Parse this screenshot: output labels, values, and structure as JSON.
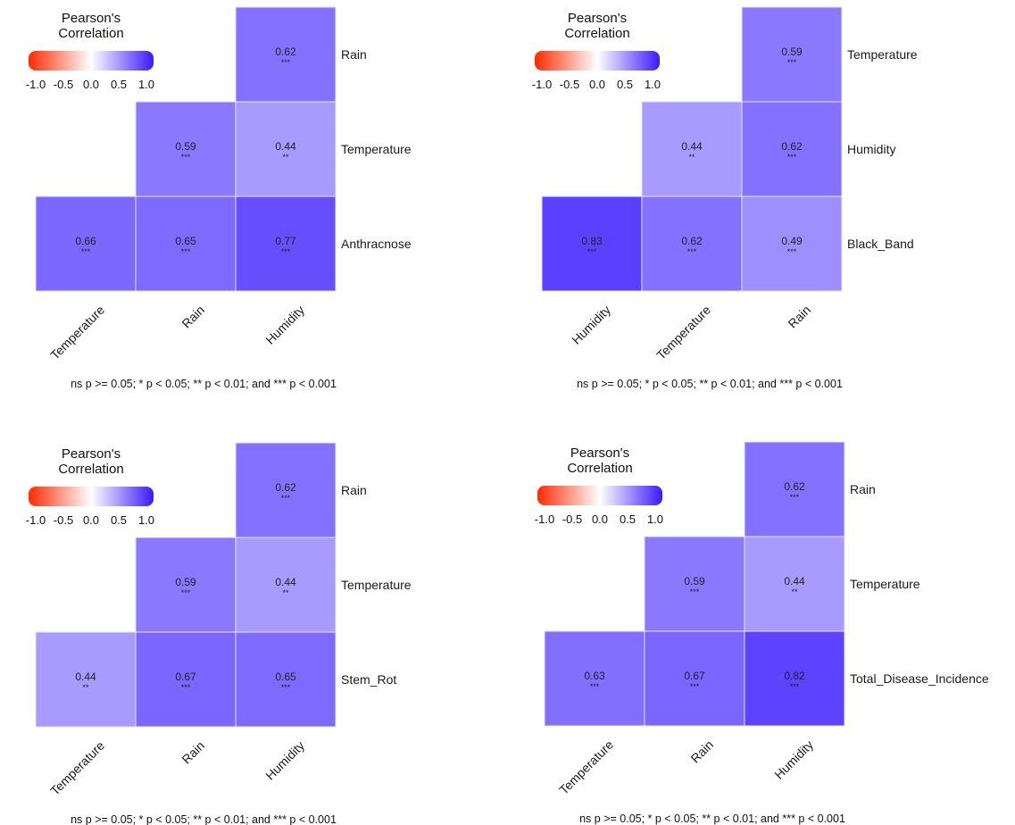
{
  "legend": {
    "title_line1": "Pearson's",
    "title_line2": "Correlation",
    "ticks": [
      "-1.0",
      "-0.5",
      "0.0",
      "0.5",
      "1.0"
    ],
    "tick_values": [
      -1.0,
      -0.5,
      0.0,
      0.5,
      1.0
    ],
    "colors": {
      "low": "#ff2a00",
      "mid": "#ffffff",
      "high": "#3a1aff"
    }
  },
  "footnote": "ns p >= 0.05; * p < 0.05; ** p < 0.01; and *** p < 0.001",
  "chart_data": [
    {
      "type": "heatmap",
      "x_labels": [
        "Temperature",
        "Rain",
        "Humidity"
      ],
      "y_labels": [
        "Rain",
        "Temperature",
        "Anthracnose"
      ],
      "cells": [
        {
          "x": "Humidity",
          "y": "Rain",
          "value": 0.62,
          "label": "0.62",
          "sig": "***"
        },
        {
          "x": "Rain",
          "y": "Temperature",
          "value": 0.59,
          "label": "0.59",
          "sig": "***"
        },
        {
          "x": "Humidity",
          "y": "Temperature",
          "value": 0.44,
          "label": "0.44",
          "sig": "**"
        },
        {
          "x": "Temperature",
          "y": "Anthracnose",
          "value": 0.66,
          "label": "0.66",
          "sig": "***"
        },
        {
          "x": "Rain",
          "y": "Anthracnose",
          "value": 0.65,
          "label": "0.65",
          "sig": "***"
        },
        {
          "x": "Humidity",
          "y": "Anthracnose",
          "value": 0.77,
          "label": "0.77",
          "sig": "***"
        }
      ]
    },
    {
      "type": "heatmap",
      "x_labels": [
        "Humidity",
        "Temperature",
        "Rain"
      ],
      "y_labels": [
        "Temperature",
        "Humidity",
        "Black_Band"
      ],
      "cells": [
        {
          "x": "Rain",
          "y": "Temperature",
          "value": 0.59,
          "label": "0.59",
          "sig": "***"
        },
        {
          "x": "Temperature",
          "y": "Humidity",
          "value": 0.44,
          "label": "0.44",
          "sig": "**"
        },
        {
          "x": "Rain",
          "y": "Humidity",
          "value": 0.62,
          "label": "0.62",
          "sig": "***"
        },
        {
          "x": "Humidity",
          "y": "Black_Band",
          "value": 0.83,
          "label": "0.83",
          "sig": "***"
        },
        {
          "x": "Temperature",
          "y": "Black_Band",
          "value": 0.62,
          "label": "0.62",
          "sig": "***"
        },
        {
          "x": "Rain",
          "y": "Black_Band",
          "value": 0.49,
          "label": "0.49",
          "sig": "***"
        }
      ]
    },
    {
      "type": "heatmap",
      "x_labels": [
        "Temperature",
        "Rain",
        "Humidity"
      ],
      "y_labels": [
        "Rain",
        "Temperature",
        "Stem_Rot"
      ],
      "cells": [
        {
          "x": "Humidity",
          "y": "Rain",
          "value": 0.62,
          "label": "0.62",
          "sig": "***"
        },
        {
          "x": "Rain",
          "y": "Temperature",
          "value": 0.59,
          "label": "0.59",
          "sig": "***"
        },
        {
          "x": "Humidity",
          "y": "Temperature",
          "value": 0.44,
          "label": "0.44",
          "sig": "**"
        },
        {
          "x": "Temperature",
          "y": "Stem_Rot",
          "value": 0.44,
          "label": "0.44",
          "sig": "**"
        },
        {
          "x": "Rain",
          "y": "Stem_Rot",
          "value": 0.67,
          "label": "0.67",
          "sig": "***"
        },
        {
          "x": "Humidity",
          "y": "Stem_Rot",
          "value": 0.65,
          "label": "0.65",
          "sig": "***"
        }
      ]
    },
    {
      "type": "heatmap",
      "x_labels": [
        "Temperature",
        "Rain",
        "Humidity"
      ],
      "y_labels": [
        "Rain",
        "Temperature",
        "Total_Disease_Incidence"
      ],
      "cells": [
        {
          "x": "Humidity",
          "y": "Rain",
          "value": 0.62,
          "label": "0.62",
          "sig": "***"
        },
        {
          "x": "Rain",
          "y": "Temperature",
          "value": 0.59,
          "label": "0.59",
          "sig": "***"
        },
        {
          "x": "Humidity",
          "y": "Temperature",
          "value": 0.44,
          "label": "0.44",
          "sig": "**"
        },
        {
          "x": "Temperature",
          "y": "Total_Disease_Incidence",
          "value": 0.63,
          "label": "0.63",
          "sig": "***"
        },
        {
          "x": "Rain",
          "y": "Total_Disease_Incidence",
          "value": 0.67,
          "label": "0.67",
          "sig": "***"
        },
        {
          "x": "Humidity",
          "y": "Total_Disease_Incidence",
          "value": 0.82,
          "label": "0.82",
          "sig": "***"
        }
      ]
    }
  ]
}
